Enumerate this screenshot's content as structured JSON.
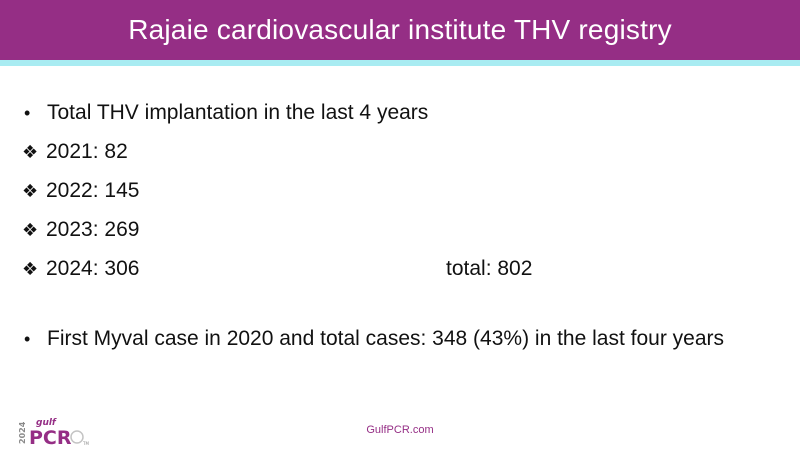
{
  "header": {
    "title": "Rajaie cardiovascular institute THV registry"
  },
  "colors": {
    "title_bar": "#952e85",
    "accent_line": "#a9ecf2",
    "text": "#111111"
  },
  "content": {
    "bullet1": "Total THV implantation in the last 4 years",
    "years": [
      {
        "text": "2021: 82"
      },
      {
        "text": "2022: 145"
      },
      {
        "text": "2023: 269"
      },
      {
        "text": "2024: 306"
      }
    ],
    "total": "total: 802",
    "bullet2": "First Myval case in 2020 and total cases: 348 (43%) in the last four years"
  },
  "footer": {
    "url": "GulfPCR.com",
    "logo_year": "2024",
    "logo_gulf": "gulf",
    "logo_pcr": "PCR",
    "logo_tm": "TM"
  }
}
